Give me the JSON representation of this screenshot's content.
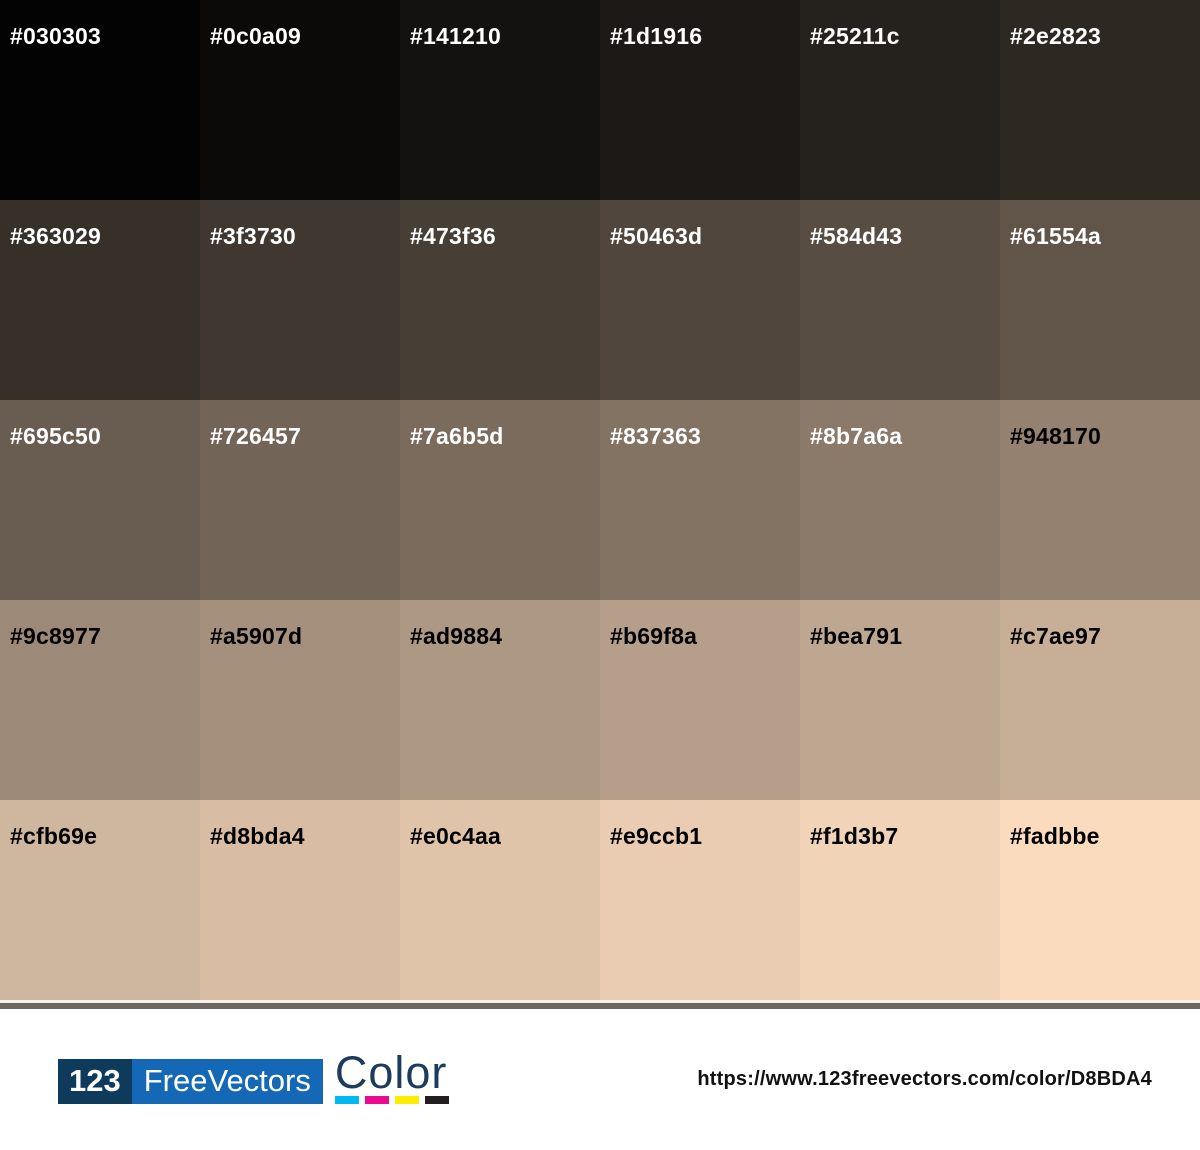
{
  "palette": {
    "swatches": [
      {
        "hex": "#030303",
        "text_color": "#ffffff"
      },
      {
        "hex": "#0c0a09",
        "text_color": "#ffffff"
      },
      {
        "hex": "#141210",
        "text_color": "#ffffff"
      },
      {
        "hex": "#1d1916",
        "text_color": "#ffffff"
      },
      {
        "hex": "#25211c",
        "text_color": "#ffffff"
      },
      {
        "hex": "#2e2823",
        "text_color": "#ffffff"
      },
      {
        "hex": "#363029",
        "text_color": "#ffffff"
      },
      {
        "hex": "#3f3730",
        "text_color": "#ffffff"
      },
      {
        "hex": "#473f36",
        "text_color": "#ffffff"
      },
      {
        "hex": "#50463d",
        "text_color": "#ffffff"
      },
      {
        "hex": "#584d43",
        "text_color": "#ffffff"
      },
      {
        "hex": "#61554a",
        "text_color": "#ffffff"
      },
      {
        "hex": "#695c50",
        "text_color": "#ffffff"
      },
      {
        "hex": "#726457",
        "text_color": "#ffffff"
      },
      {
        "hex": "#7a6b5d",
        "text_color": "#ffffff"
      },
      {
        "hex": "#837363",
        "text_color": "#ffffff"
      },
      {
        "hex": "#8b7a6a",
        "text_color": "#ffffff"
      },
      {
        "hex": "#948170",
        "text_color": "#000000"
      },
      {
        "hex": "#9c8977",
        "text_color": "#000000"
      },
      {
        "hex": "#a5907d",
        "text_color": "#000000"
      },
      {
        "hex": "#ad9884",
        "text_color": "#000000"
      },
      {
        "hex": "#b69f8a",
        "text_color": "#000000"
      },
      {
        "hex": "#bea791",
        "text_color": "#000000"
      },
      {
        "hex": "#c7ae97",
        "text_color": "#000000"
      },
      {
        "hex": "#cfb69e",
        "text_color": "#000000"
      },
      {
        "hex": "#d8bda4",
        "text_color": "#000000"
      },
      {
        "hex": "#e0c4aa",
        "text_color": "#000000"
      },
      {
        "hex": "#e9ccb1",
        "text_color": "#000000"
      },
      {
        "hex": "#f1d3b7",
        "text_color": "#000000"
      },
      {
        "hex": "#fadbbe",
        "text_color": "#000000"
      }
    ]
  },
  "footer": {
    "logo": {
      "prefix": "123",
      "name": "FreeVectors",
      "product": "Color",
      "prefix_bg": "#0e3a5c",
      "name_bg": "#1468b6",
      "product_color": "#1c3c5e",
      "cmyk_colors": [
        "#00b9f1",
        "#ec0a8e",
        "#fdee00",
        "#231f20"
      ]
    },
    "url": "https://www.123freevectors.com/color/D8BDA4"
  },
  "colors": {
    "divider_light": "#f7f2ee",
    "divider_dark": "#6e6863"
  }
}
